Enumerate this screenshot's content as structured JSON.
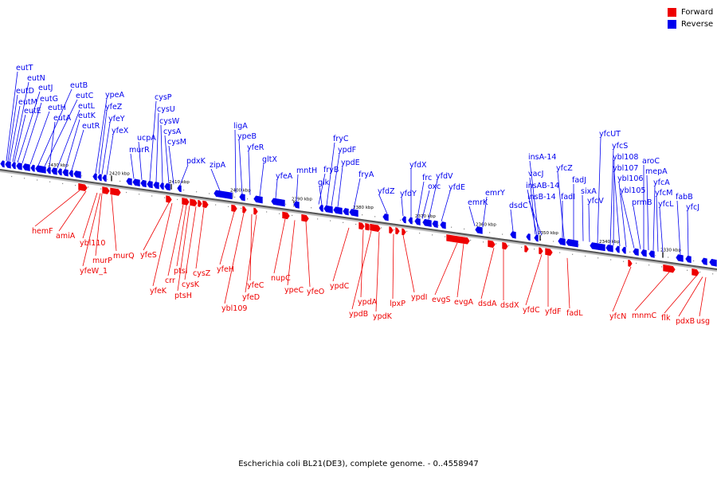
{
  "caption": "Escherichia coli BL21(DE3), complete genome. - 0..4558947",
  "legend": {
    "forward_label": "Forward",
    "reverse_label": "Reverse",
    "forward_color": "#ee0000",
    "reverse_color": "#0000ee"
  },
  "ruler": {
    "ticks": [
      "2430 kbp",
      "2420 kbp",
      "2410 kbp",
      "2400 kbp",
      "2390 kbp",
      "2380 kbp",
      "2370 kbp",
      "2360 kbp",
      "2350 kbp",
      "2340 kbp",
      "2330 kbp"
    ]
  },
  "reverse_genes": [
    "eutT",
    "eutN",
    "eutD",
    "eutJ",
    "eutM",
    "eutG",
    "eutE",
    "eutH",
    "eutB",
    "eutC",
    "eutA",
    "eutL",
    "eutK",
    "eutR",
    "ypeA",
    "yfeZ",
    "yfeY",
    "yfeX",
    "murR",
    "ucpA",
    "cysP",
    "cysU",
    "cysW",
    "cysA",
    "cysM",
    "pdxK",
    "zipA",
    "ligA",
    "ypeB",
    "yfeR",
    "gltX",
    "yfeA",
    "mntH",
    "fryC",
    "fryB",
    "ypdF",
    "glk",
    "ypdE",
    "fryA",
    "yfdZ",
    "yfdX",
    "yfdY",
    "frc",
    "oxc",
    "yfdV",
    "yfdE",
    "emrK",
    "emrY",
    "dsdC",
    "insA-14",
    "vacJ",
    "insAB-14",
    "insB-14",
    "yfcZ",
    "fadJ",
    "fadI",
    "sixA",
    "yfcV",
    "yfcUT",
    "yfcS",
    "ybl108",
    "ybl107",
    "ybl106",
    "ybl105",
    "prmB",
    "aroC",
    "mepA",
    "yfcA",
    "yfcM",
    "yfcL",
    "fabB",
    "yfcJ"
  ],
  "forward_genes": [
    "hemF",
    "amiA",
    "ybl110",
    "murP",
    "yfeW_1",
    "murQ",
    "yfeS",
    "yfeK",
    "crr",
    "ptsI",
    "ptsH",
    "cysK",
    "cysZ",
    "yfeH",
    "ybl109",
    "yfeC",
    "yfeD",
    "nupC",
    "ypeC",
    "yfeO",
    "ypdC",
    "ypdA",
    "ypdB",
    "ypdK",
    "lpxP",
    "ypdI",
    "evgS",
    "evgA",
    "dsdA",
    "dsdX",
    "yfdC",
    "yfdF",
    "fadL",
    "yfcN",
    "mnmC",
    "flk",
    "pdxB",
    "usg"
  ]
}
